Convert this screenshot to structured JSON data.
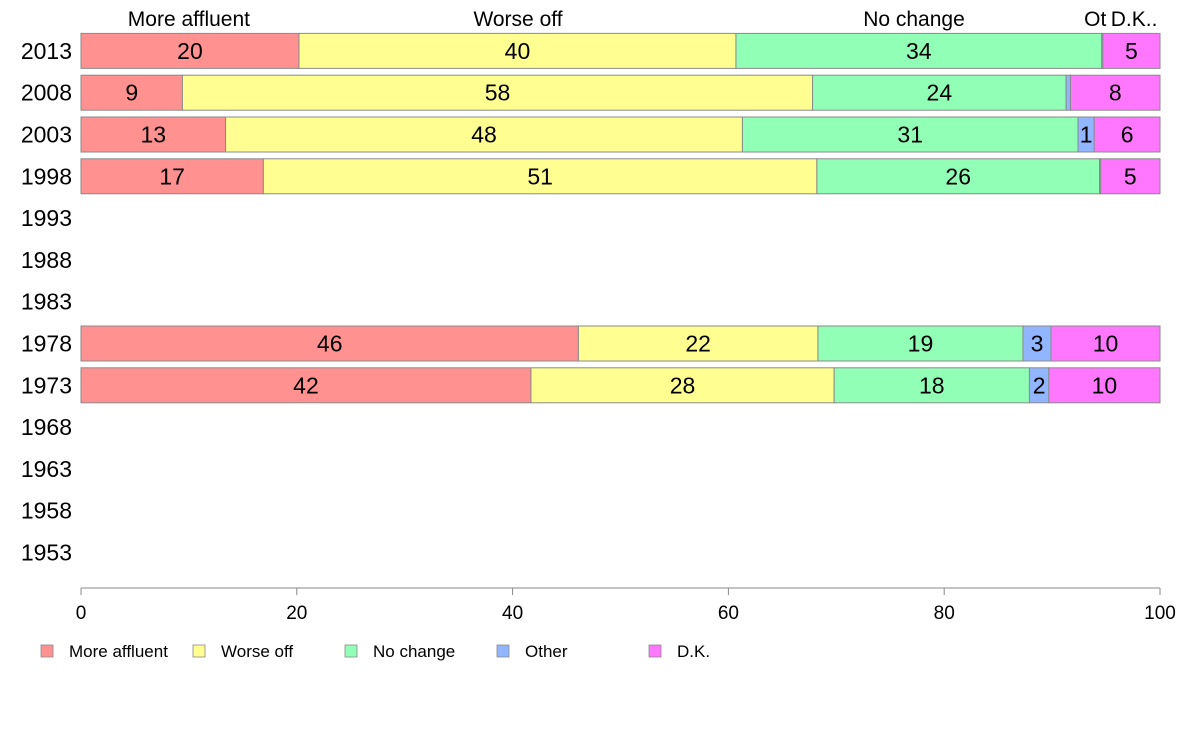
{
  "chart_data": {
    "type": "bar",
    "orientation": "horizontal",
    "stacked": true,
    "categories": [
      "2013",
      "2008",
      "2003",
      "1998",
      "1993",
      "1988",
      "1983",
      "1978",
      "1973",
      "1968",
      "1963",
      "1958",
      "1953"
    ],
    "series": [
      {
        "name": "More affluent",
        "color": "#ff9191",
        "values": [
          20.2,
          9.4,
          13.4,
          16.9,
          null,
          null,
          null,
          46.1,
          41.7,
          null,
          null,
          null,
          null
        ],
        "labels": [
          "20",
          "9",
          "13",
          "17",
          "",
          "",
          "",
          "46",
          "42",
          "",
          "",
          "",
          ""
        ]
      },
      {
        "name": "Worse off",
        "color": "#ffff91",
        "values": [
          40.5,
          58.4,
          47.9,
          51.3,
          null,
          null,
          null,
          22.2,
          28.1,
          null,
          null,
          null,
          null
        ],
        "labels": [
          "40",
          "58",
          "48",
          "51",
          "",
          "",
          "",
          "22",
          "28",
          "",
          "",
          "",
          ""
        ]
      },
      {
        "name": "No change",
        "color": "#91ffb5",
        "values": [
          33.9,
          23.5,
          31.1,
          26.2,
          null,
          null,
          null,
          19.0,
          18.1,
          null,
          null,
          null,
          null
        ],
        "labels": [
          "34",
          "24",
          "31",
          "26",
          "",
          "",
          "",
          "19",
          "18",
          "",
          "",
          "",
          ""
        ]
      },
      {
        "name": "Other",
        "color": "#91b5ff",
        "values": [
          0.1,
          0.4,
          1.5,
          0.1,
          null,
          null,
          null,
          2.6,
          1.8,
          null,
          null,
          null,
          null
        ],
        "labels": [
          "",
          "",
          "1",
          "",
          "",
          "",
          "",
          "3",
          "2",
          "",
          "",
          "",
          ""
        ]
      },
      {
        "name": "D.K.",
        "color": "#ff77ff",
        "values": [
          5.3,
          8.3,
          6.1,
          5.5,
          null,
          null,
          null,
          10.1,
          10.3,
          null,
          null,
          null,
          null
        ],
        "labels": [
          "5",
          "8",
          "6",
          "5",
          "",
          "",
          "",
          "10",
          "10",
          "",
          "",
          "",
          ""
        ]
      }
    ],
    "top_labels": [
      {
        "text": "More affluent",
        "at": 10
      },
      {
        "text": "Worse off",
        "at": 40.5
      },
      {
        "text": "No change",
        "at": 77.2
      },
      {
        "text": "Ot",
        "at": 94.0
      },
      {
        "text": "D.K..",
        "at": 97.6
      }
    ],
    "x_ticks": [
      0,
      20,
      40,
      60,
      80,
      100
    ],
    "xlim": [
      0,
      100
    ],
    "grid": false,
    "legend_position": "bottom-left"
  }
}
